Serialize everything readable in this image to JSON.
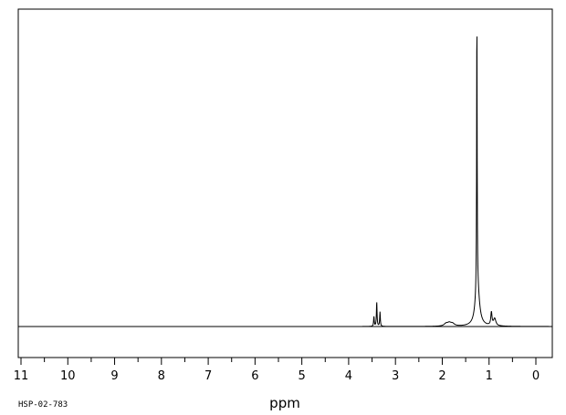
{
  "chart_data": {
    "type": "line",
    "xlabel": "ppm",
    "sample_code": "HSP-02-783",
    "x_reversed": true,
    "xlim": [
      11.25,
      -0.3
    ],
    "ylim": [
      0,
      100
    ],
    "major_ticks": [
      11,
      10,
      9,
      8,
      7,
      6,
      5,
      4,
      3,
      2,
      1,
      0
    ],
    "minor_tick_step": 0.5,
    "grid": false,
    "series": [
      {
        "peaks": [
          {
            "ppm": 3.46,
            "height": 3.5,
            "width": 0.008
          },
          {
            "ppm": 3.4,
            "height": 8.5,
            "width": 0.008
          },
          {
            "ppm": 3.33,
            "height": 5.0,
            "width": 0.008
          },
          {
            "ppm": 1.92,
            "height": 0.8,
            "width": 0.05
          },
          {
            "ppm": 1.85,
            "height": 1.0,
            "width": 0.05
          },
          {
            "ppm": 1.78,
            "height": 0.8,
            "width": 0.05
          },
          {
            "ppm": 1.26,
            "height": 100.0,
            "width": 0.006
          },
          {
            "ppm": 1.25,
            "height": 14.0,
            "width": 0.05
          },
          {
            "ppm": 0.95,
            "height": 4.5,
            "width": 0.015
          },
          {
            "ppm": 0.88,
            "height": 2.5,
            "width": 0.03
          }
        ]
      }
    ]
  }
}
